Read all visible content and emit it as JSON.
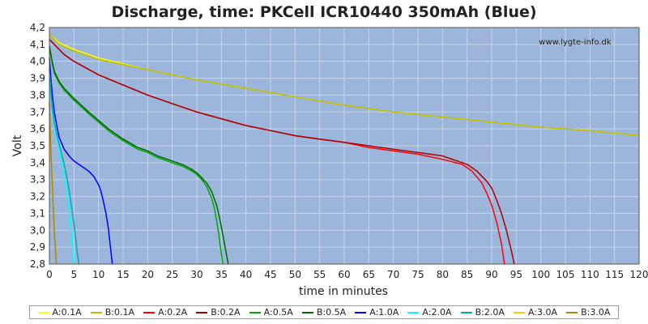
{
  "chart_data": {
    "type": "line",
    "title": "Discharge, time: PKCell ICR10440 350mAh (Blue)",
    "watermark": "www.lygte-info.dk",
    "xlabel": "time in minutes",
    "ylabel": "Volt",
    "xlim": [
      0,
      120
    ],
    "ylim": [
      2.8,
      4.2
    ],
    "xticks": [
      0,
      5,
      10,
      15,
      20,
      25,
      30,
      35,
      40,
      45,
      50,
      55,
      60,
      65,
      70,
      75,
      80,
      85,
      90,
      95,
      100,
      105,
      110,
      115,
      120
    ],
    "yticks": [
      "2,8",
      "2,9",
      "3,0",
      "3,1",
      "3,2",
      "3,3",
      "3,4",
      "3,5",
      "3,6",
      "3,7",
      "3,8",
      "3,9",
      "4,0",
      "4,1",
      "4,2"
    ],
    "grid": true,
    "plot_bg": "#9bb5db",
    "legend_position": "bottom",
    "series": [
      {
        "name": "A:0.1A",
        "color": "#ffff00",
        "x": [
          0,
          2,
          5,
          10,
          20,
          30,
          40,
          50,
          60,
          70,
          80,
          90,
          100,
          110,
          120
        ],
        "y": [
          4.16,
          4.11,
          4.07,
          4.02,
          3.95,
          3.89,
          3.84,
          3.79,
          3.74,
          3.7,
          3.67,
          3.64,
          3.61,
          3.59,
          3.56
        ]
      },
      {
        "name": "B:0.1A",
        "color": "#bdbd00",
        "x": [
          0,
          2,
          5,
          10,
          20,
          30,
          40,
          50,
          60,
          70,
          80,
          90,
          100,
          110,
          120
        ],
        "y": [
          4.16,
          4.1,
          4.06,
          4.01,
          3.95,
          3.89,
          3.84,
          3.79,
          3.74,
          3.7,
          3.67,
          3.64,
          3.61,
          3.59,
          3.56
        ]
      },
      {
        "name": "A:0.2A",
        "color": "#ff0000",
        "x": [
          0,
          1,
          3,
          5,
          10,
          15,
          20,
          25,
          30,
          35,
          40,
          45,
          50,
          55,
          60,
          65,
          70,
          75,
          80,
          84,
          86,
          88,
          89,
          90,
          91,
          92,
          92.6
        ],
        "y": [
          4.13,
          4.1,
          4.04,
          4.0,
          3.92,
          3.86,
          3.8,
          3.75,
          3.7,
          3.66,
          3.62,
          3.59,
          3.56,
          3.54,
          3.52,
          3.49,
          3.47,
          3.45,
          3.42,
          3.39,
          3.35,
          3.28,
          3.22,
          3.15,
          3.05,
          2.92,
          2.8
        ]
      },
      {
        "name": "B:0.2A",
        "color": "#aa0000",
        "x": [
          0,
          1,
          3,
          5,
          10,
          15,
          20,
          25,
          30,
          35,
          40,
          45,
          50,
          55,
          60,
          65,
          70,
          75,
          80,
          85,
          87,
          89,
          90,
          91,
          92,
          93,
          94,
          94.6
        ],
        "y": [
          4.13,
          4.1,
          4.04,
          4.0,
          3.92,
          3.86,
          3.8,
          3.75,
          3.7,
          3.66,
          3.62,
          3.59,
          3.56,
          3.54,
          3.52,
          3.5,
          3.48,
          3.46,
          3.44,
          3.39,
          3.35,
          3.29,
          3.25,
          3.18,
          3.1,
          3.0,
          2.88,
          2.8
        ]
      },
      {
        "name": "A:0.5A",
        "color": "#00aa00",
        "x": [
          0,
          0.5,
          1,
          2,
          3,
          5,
          8,
          10,
          12,
          15,
          18,
          20,
          22,
          25,
          27,
          29,
          30,
          31,
          32,
          33,
          33.5,
          34,
          34.5,
          35,
          35.3
        ],
        "y": [
          4.08,
          4.0,
          3.93,
          3.87,
          3.83,
          3.77,
          3.69,
          3.64,
          3.59,
          3.53,
          3.48,
          3.46,
          3.43,
          3.4,
          3.38,
          3.35,
          3.33,
          3.3,
          3.26,
          3.19,
          3.14,
          3.06,
          2.97,
          2.86,
          2.8
        ]
      },
      {
        "name": "B:0.5A",
        "color": "#006600",
        "x": [
          0,
          0.5,
          1,
          2,
          3,
          5,
          8,
          10,
          12,
          15,
          18,
          20,
          22,
          25,
          27,
          29,
          30,
          31,
          32,
          33,
          34,
          34.5,
          35,
          35.5,
          36,
          36.4
        ],
        "y": [
          4.09,
          4.01,
          3.94,
          3.88,
          3.84,
          3.78,
          3.7,
          3.65,
          3.6,
          3.54,
          3.49,
          3.47,
          3.44,
          3.41,
          3.39,
          3.36,
          3.34,
          3.31,
          3.28,
          3.23,
          3.15,
          3.09,
          3.02,
          2.94,
          2.86,
          2.8
        ]
      },
      {
        "name": "A:1.0A",
        "color": "#0000ff",
        "x": [
          0,
          0.3,
          0.6,
          1,
          1.5,
          2,
          3,
          4,
          5,
          6,
          7,
          8,
          9,
          10,
          10.5,
          11,
          11.5,
          12,
          12.5,
          12.8
        ],
        "y": [
          4.02,
          3.9,
          3.8,
          3.7,
          3.62,
          3.55,
          3.48,
          3.44,
          3.41,
          3.39,
          3.37,
          3.35,
          3.32,
          3.27,
          3.23,
          3.17,
          3.1,
          3.01,
          2.88,
          2.8
        ]
      },
      {
        "name": "A:2.0A",
        "color": "#00ffff",
        "x": [
          0,
          0.3,
          0.6,
          1,
          1.5,
          2,
          2.5,
          3,
          3.5,
          4,
          4.3,
          4.6,
          5
        ],
        "y": [
          3.95,
          3.8,
          3.7,
          3.62,
          3.55,
          3.48,
          3.4,
          3.32,
          3.23,
          3.12,
          3.02,
          2.92,
          2.8
        ]
      },
      {
        "name": "B:2.0A",
        "color": "#00aaaa",
        "x": [
          0,
          0.3,
          0.6,
          1,
          1.5,
          2,
          2.5,
          3,
          3.5,
          4,
          4.5,
          5,
          5.3,
          5.6,
          6
        ],
        "y": [
          3.95,
          3.82,
          3.72,
          3.64,
          3.57,
          3.51,
          3.45,
          3.39,
          3.32,
          3.24,
          3.14,
          3.04,
          2.96,
          2.88,
          2.8
        ]
      },
      {
        "name": "A:3.0A",
        "color": "#ffcc00",
        "x": [
          0,
          0.2,
          0.4,
          0.6,
          0.8,
          1,
          1.2,
          1.4
        ],
        "y": [
          3.75,
          3.55,
          3.4,
          3.25,
          3.1,
          2.98,
          2.88,
          2.8
        ]
      },
      {
        "name": "B:3.0A",
        "color": "#aa8800",
        "x": [
          0,
          0.2,
          0.4,
          0.6,
          0.8,
          1,
          1.2,
          1.4
        ],
        "y": [
          3.76,
          3.56,
          3.41,
          3.26,
          3.11,
          2.99,
          2.89,
          2.8
        ]
      }
    ]
  }
}
